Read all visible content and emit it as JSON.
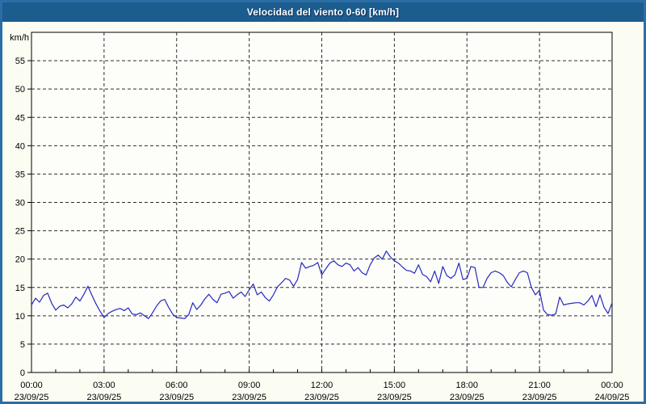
{
  "header": {
    "title": "Velocidad del viento 0-60 [km/h]"
  },
  "colors": {
    "titlebar_bg": "#1c5d8f",
    "titlebar_text": "#ffffff",
    "frame_border": "#2d6da6",
    "page_bg": "#fbfdf3",
    "plot_bg": "#fdfef9",
    "grid": "#2e2e2e",
    "axis": "#000000",
    "line": "#2727c3",
    "tick_text": "#000000"
  },
  "chart_data": {
    "type": "line",
    "title": "Velocidad del viento 0-60 [km/h]",
    "ylabel": "km/h",
    "xlabel": "",
    "ylim": [
      0,
      60
    ],
    "xlim_hours": [
      0,
      24
    ],
    "grid": "dashed",
    "legend": "none",
    "y_ticks": [
      0,
      5,
      10,
      15,
      20,
      25,
      30,
      35,
      40,
      45,
      50,
      55
    ],
    "x_major_ticks": [
      {
        "hour": 0,
        "time": "00:00",
        "date": "23/09/25"
      },
      {
        "hour": 3,
        "time": "03:00",
        "date": "23/09/25"
      },
      {
        "hour": 6,
        "time": "06:00",
        "date": "23/09/25"
      },
      {
        "hour": 9,
        "time": "09:00",
        "date": "23/09/25"
      },
      {
        "hour": 12,
        "time": "12:00",
        "date": "23/09/25"
      },
      {
        "hour": 15,
        "time": "15:00",
        "date": "23/09/25"
      },
      {
        "hour": 18,
        "time": "18:00",
        "date": "23/09/25"
      },
      {
        "hour": 21,
        "time": "21:00",
        "date": "23/09/25"
      },
      {
        "hour": 24,
        "time": "00:00",
        "date": "24/09/25"
      }
    ],
    "x_minor_tick_hours": 1,
    "series": [
      {
        "name": "wind-speed-kmh",
        "x_start_hour": 0,
        "x_step_minutes": 10,
        "values": [
          11.9,
          13.1,
          12.4,
          13.6,
          14.0,
          12.2,
          11.0,
          11.7,
          11.9,
          11.4,
          12.1,
          13.3,
          12.6,
          13.8,
          15.2,
          13.6,
          12.1,
          10.8,
          9.7,
          10.4,
          10.8,
          11.1,
          11.3,
          10.9,
          11.4,
          10.3,
          10.2,
          10.5,
          10.0,
          9.5,
          10.5,
          11.7,
          12.6,
          12.9,
          11.5,
          10.3,
          9.7,
          9.6,
          9.5,
          10.2,
          12.3,
          11.1,
          11.9,
          13.0,
          13.8,
          12.9,
          12.3,
          13.8,
          14.0,
          14.3,
          13.1,
          13.7,
          14.2,
          13.4,
          14.6,
          15.6,
          13.7,
          14.2,
          13.2,
          12.6,
          13.7,
          15.1,
          15.8,
          16.6,
          16.3,
          15.2,
          16.4,
          19.4,
          18.4,
          18.7,
          18.9,
          19.4,
          17.2,
          18.3,
          19.3,
          19.7,
          19.0,
          18.7,
          19.3,
          19.0,
          17.9,
          18.5,
          17.6,
          17.2,
          19.0,
          20.2,
          20.7,
          20.0,
          21.4,
          20.4,
          19.7,
          19.3,
          18.6,
          18.0,
          17.9,
          17.5,
          19.0,
          17.3,
          16.9,
          16.0,
          17.9,
          15.7,
          18.7,
          17.1,
          16.6,
          17.2,
          19.3,
          16.4,
          16.6,
          18.7,
          18.5,
          15.0,
          15.0,
          16.6,
          17.6,
          17.9,
          17.6,
          17.1,
          15.9,
          15.1,
          16.4,
          17.6,
          17.9,
          17.6,
          15.0,
          13.7,
          14.5,
          11.0,
          10.2,
          10.1,
          10.3,
          13.3,
          11.9,
          12.1,
          12.2,
          12.3,
          12.3,
          11.9,
          12.6,
          13.6,
          11.6,
          13.7,
          11.5,
          10.4,
          12.3
        ]
      }
    ]
  }
}
